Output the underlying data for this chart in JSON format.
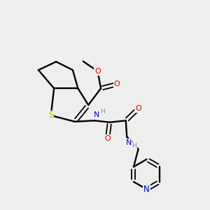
{
  "background_color": "#eeeeee",
  "bond_color": "#000000",
  "S_color": "#bbbb00",
  "N_color": "#0000cc",
  "O_color": "#dd0000",
  "H_color": "#559999",
  "figsize": [
    3.0,
    3.0
  ],
  "dpi": 100,
  "xlim": [
    0,
    10
  ],
  "ylim": [
    0,
    10
  ]
}
